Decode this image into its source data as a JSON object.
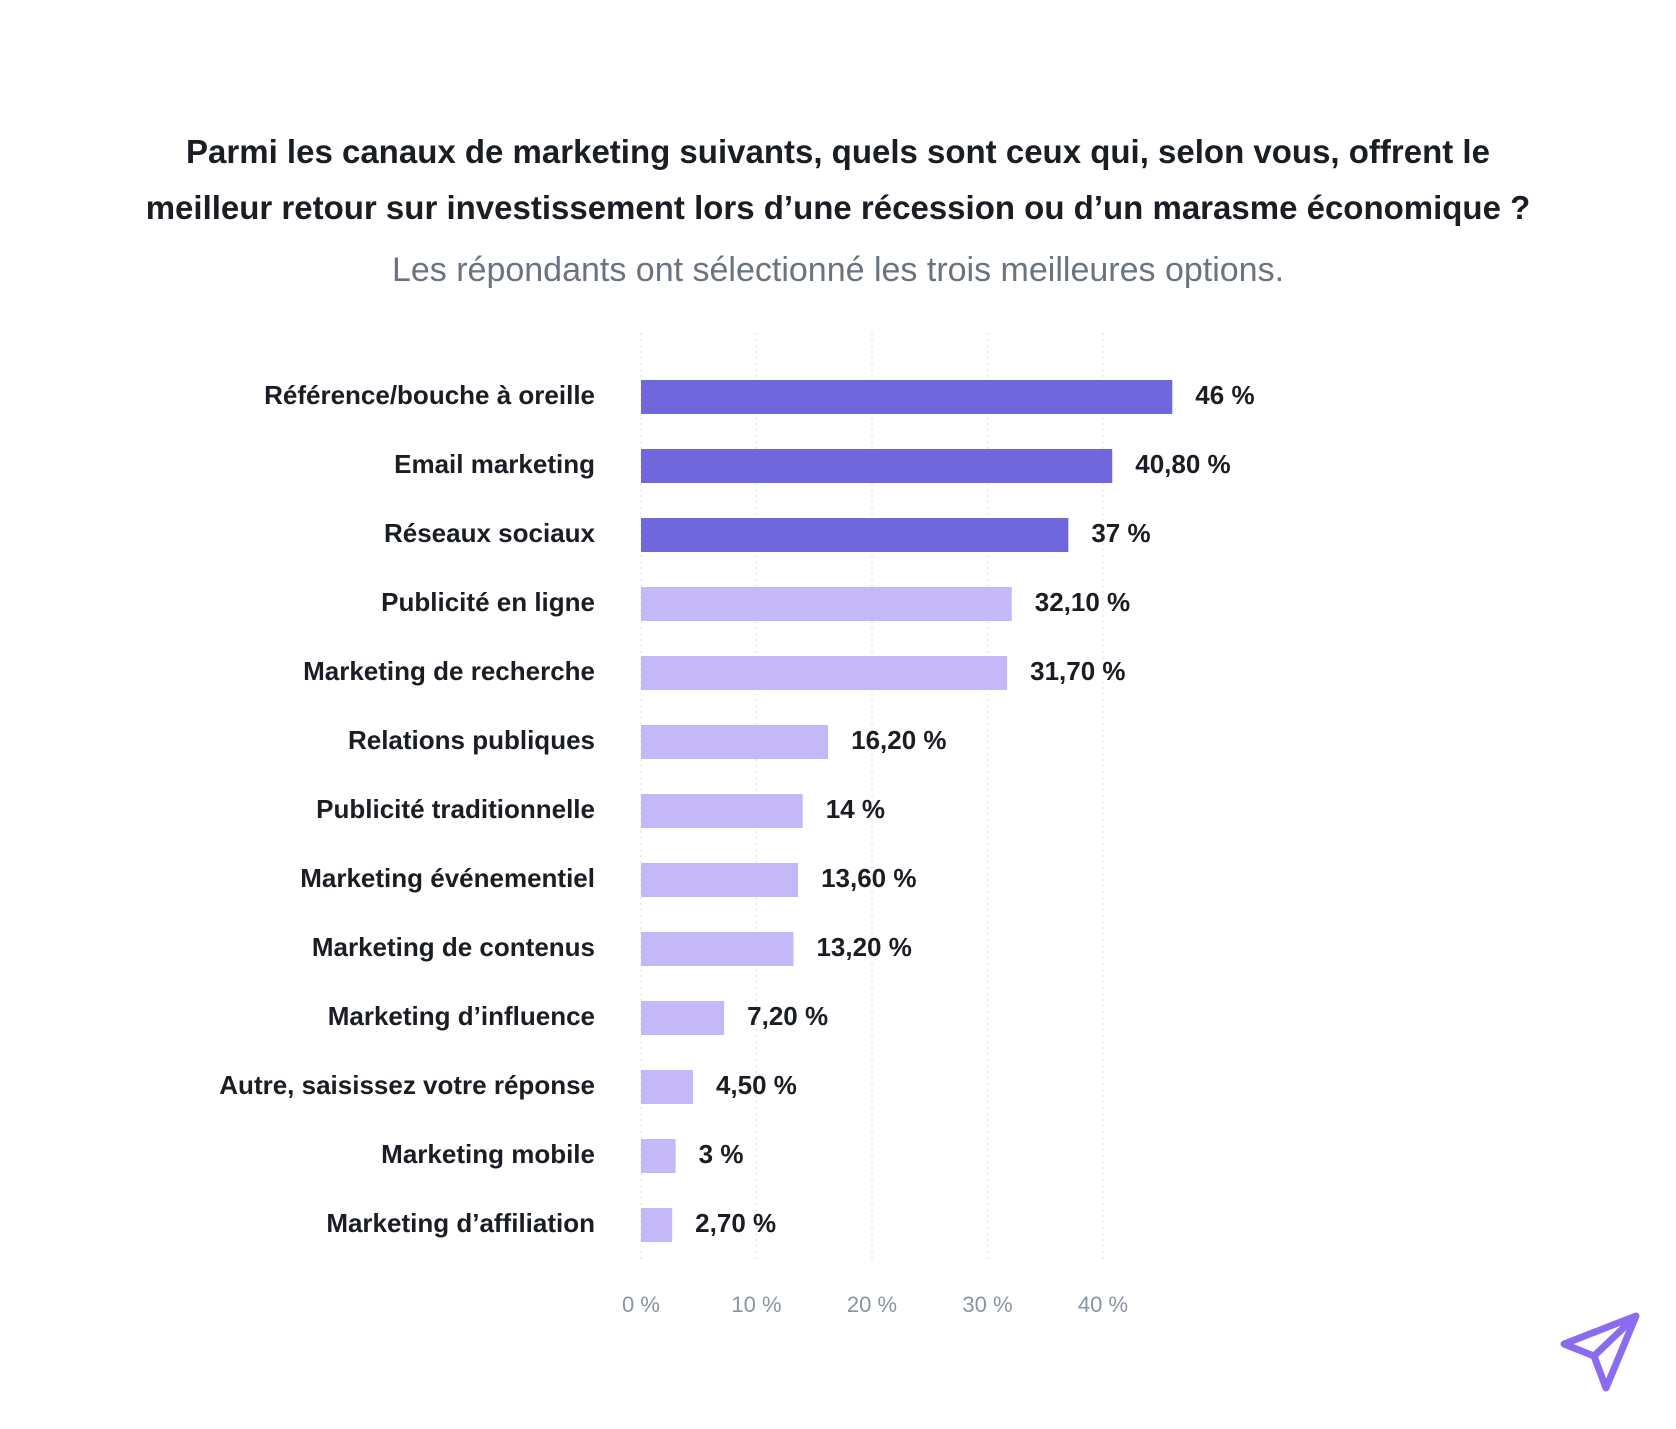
{
  "header": {
    "title_line1": "Parmi les canaux de marketing suivants, quels sont ceux qui, selon vous, offrent le",
    "title_line2": "meilleur retour sur investissement lors d’une récession ou d’un marasme économique ?",
    "subtitle": "Les répondants ont sélectionné les trois meilleures options."
  },
  "colors": {
    "highlight": "#7167dc",
    "normal": "#c5b8f8",
    "logo": "#8b6cf0"
  },
  "chart_data": {
    "type": "bar",
    "orientation": "horizontal",
    "title": "Parmi les canaux de marketing suivants, quels sont ceux qui, selon vous, offrent le meilleur retour sur investissement lors d’une récession ou d’un marasme économique ?",
    "subtitle": "Les répondants ont sélectionné les trois meilleures options.",
    "xlabel": "",
    "ylabel": "",
    "xlim": [
      0,
      46
    ],
    "ticks": [
      0,
      10,
      20,
      30,
      40
    ],
    "tick_labels": [
      "0 %",
      "10 %",
      "20 %",
      "30 %",
      "40 %"
    ],
    "grid": true,
    "highlight_top_n": 3,
    "categories": [
      "Référence/bouche à oreille",
      "Email marketing",
      "Réseaux sociaux",
      "Publicité en ligne",
      "Marketing de recherche",
      "Relations publiques",
      "Publicité traditionnelle",
      "Marketing événementiel",
      "Marketing de contenus",
      "Marketing d’influence",
      "Autre, saisissez votre réponse",
      "Marketing mobile",
      "Marketing d’affiliation"
    ],
    "values": [
      46,
      40.8,
      37,
      32.1,
      31.7,
      16.2,
      14,
      13.6,
      13.2,
      7.2,
      4.5,
      3,
      2.7
    ],
    "value_labels": [
      "46 %",
      "40,80 %",
      "37 %",
      "32,10 %",
      "31,70 %",
      "16,20 %",
      "14 %",
      "13,60 %",
      "13,20 %",
      "7,20 %",
      "4,50 %",
      "3 %",
      "2,70 %"
    ]
  },
  "logo": {
    "icon": "paper-plane-icon"
  }
}
